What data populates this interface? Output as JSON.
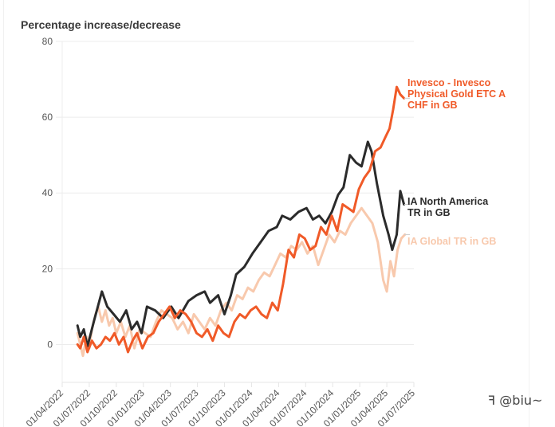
{
  "chart_data": {
    "type": "line",
    "title": "Percentage increase/decrease",
    "xlabel": "",
    "ylabel": "Percentage increase/decrease",
    "ylim": [
      -10,
      80
    ],
    "yticks": [
      0,
      20,
      40,
      60,
      80
    ],
    "xlim": [
      "2022-04-01",
      "2025-07-01"
    ],
    "xticks": [
      "01/04/2022",
      "01/07/2022",
      "01/10/2022",
      "01/01/2023",
      "01/04/2023",
      "01/07/2023",
      "01/10/2023",
      "01/01/2024",
      "01/04/2024",
      "01/07/2024",
      "01/10/2024",
      "01/01/2025",
      "01/04/2025",
      "01/07/2025"
    ],
    "grid": true,
    "legend": "right (inline end labels)",
    "x_unit": "months since 2022-04-01",
    "series": [
      {
        "name": "IA Global TR in GB",
        "color": "#f8c9ad",
        "x": [
          1.7,
          2.0,
          2.3,
          2.7,
          3.0,
          3.3,
          3.7,
          4.0,
          4.4,
          4.8,
          5.2,
          5.6,
          6.0,
          6.5,
          7.0,
          7.5,
          8.0,
          8.6,
          9.2,
          9.8,
          10.4,
          11.0,
          11.6,
          12.2,
          12.8,
          13.4,
          14.0,
          14.6,
          15.2,
          15.8,
          16.4,
          17.0,
          17.6,
          18.2,
          18.8,
          19.4,
          20.0,
          20.6,
          21.2,
          21.8,
          22.4,
          23.0,
          23.6,
          24.2,
          24.8,
          25.4,
          26.0,
          26.6,
          27.2,
          27.8,
          28.4,
          29.0,
          29.6,
          30.2,
          30.8,
          31.4,
          32.0,
          32.6,
          33.2,
          33.8,
          34.4,
          35.0,
          35.6,
          36.0,
          36.4,
          36.8,
          37.2,
          37.6,
          38.0
        ],
        "values": [
          3,
          0,
          -3,
          2,
          -1,
          4,
          8,
          10,
          6,
          9,
          5,
          7,
          3,
          6,
          2,
          5,
          -1,
          4,
          3,
          2,
          6,
          9,
          8,
          7,
          4,
          6,
          3,
          8,
          6,
          4,
          7,
          5,
          9,
          11,
          9,
          13,
          12,
          15,
          14,
          17,
          19,
          18,
          21,
          24,
          23,
          26,
          25,
          27,
          24,
          26,
          21,
          25,
          29,
          27,
          30,
          29,
          32,
          34,
          36,
          34,
          32,
          27,
          17,
          14,
          22,
          18,
          25,
          28,
          29
        ]
      },
      {
        "name": "IA North America TR in GB",
        "color": "#2b2b2b",
        "x": [
          1.7,
          2.0,
          2.4,
          2.8,
          3.5,
          4.4,
          5.0,
          5.7,
          6.4,
          7.1,
          7.7,
          8.3,
          8.8,
          9.4,
          10.3,
          11.2,
          12.1,
          12.9,
          14.0,
          14.9,
          15.8,
          16.4,
          17.3,
          18.0,
          18.7,
          19.3,
          20.2,
          21.1,
          22.0,
          22.9,
          23.8,
          24.4,
          25.3,
          26.2,
          27.1,
          27.8,
          28.5,
          29.2,
          29.9,
          30.6,
          31.2,
          31.9,
          32.6,
          33.2,
          33.9,
          34.3,
          34.9,
          35.6,
          36.2,
          36.6,
          37.1,
          37.5,
          37.9
        ],
        "values": [
          5,
          2,
          4,
          -0.5,
          6,
          14,
          10,
          8,
          6,
          9,
          4,
          6,
          3,
          10,
          9,
          7,
          10,
          7,
          11.5,
          13,
          14,
          11,
          13,
          8,
          13,
          18.5,
          20.5,
          24,
          27,
          30,
          31,
          34,
          33,
          35,
          36,
          33,
          34,
          32,
          35,
          39.5,
          41.5,
          50,
          48,
          47,
          53.5,
          51,
          42.6,
          34,
          29,
          25,
          29,
          40.5,
          37
        ]
      },
      {
        "name": "Invesco - Invesco Physical Gold ETC A CHF in GB",
        "color": "#f05a28",
        "x": [
          1.7,
          2.0,
          2.4,
          2.8,
          3.3,
          3.8,
          4.3,
          4.8,
          5.3,
          5.8,
          6.3,
          6.8,
          7.3,
          7.8,
          8.3,
          8.9,
          9.5,
          10.1,
          10.7,
          11.3,
          11.9,
          12.5,
          13.1,
          13.7,
          14.3,
          14.9,
          15.5,
          16.1,
          16.7,
          17.3,
          17.9,
          18.5,
          19.1,
          19.7,
          20.3,
          20.9,
          21.5,
          22.1,
          22.7,
          23.3,
          23.9,
          24.5,
          25.1,
          25.7,
          26.3,
          26.9,
          27.5,
          28.1,
          28.7,
          29.3,
          29.9,
          30.5,
          31.1,
          31.7,
          32.3,
          32.9,
          33.5,
          34.1,
          34.7,
          35.3,
          35.9,
          36.3,
          36.7,
          37.1,
          37.5,
          37.9
        ],
        "values": [
          0,
          -1,
          2,
          -2,
          1,
          -1,
          0,
          2,
          1,
          3,
          0,
          2,
          -2,
          1,
          3,
          -1,
          2,
          3,
          6,
          8,
          10,
          7,
          9,
          8,
          6,
          3,
          2,
          4,
          1,
          5,
          3,
          2,
          6,
          8,
          7,
          9,
          10,
          8,
          7,
          11,
          9,
          16,
          25,
          23,
          29,
          28,
          25,
          26,
          31,
          29,
          34,
          30,
          37,
          36,
          35,
          41,
          44,
          46,
          51,
          52,
          55,
          57,
          62,
          68,
          66,
          65
        ]
      }
    ]
  },
  "watermark": "@biu~"
}
